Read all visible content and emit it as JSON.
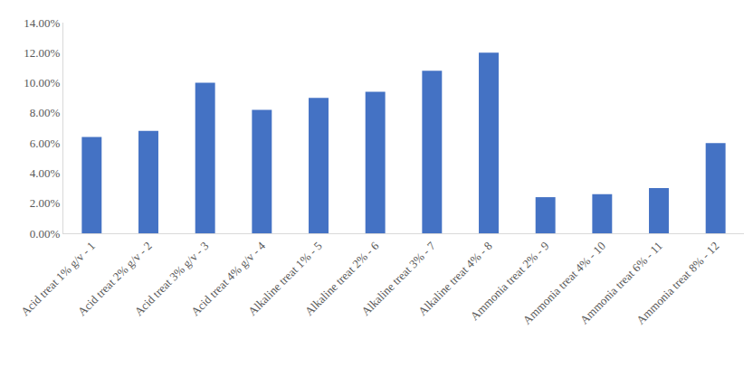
{
  "chart_data": {
    "type": "bar",
    "categories": [
      "Acid treat 1% g/v - 1",
      "Acid treat 2% g/v - 2",
      "Acid treat 3% g/v - 3",
      "Acid treat 4% g/v - 4",
      "Alkaline treat 1% - 5",
      "Alkaline treat 2% - 6",
      "Alkaline treat 3% - 7",
      "Alkaline treat 4% - 8",
      "Ammonia treat 2% - 9",
      "Ammonia treat 4% - 10",
      "Ammonia treat 6% - 11",
      "Ammonia treat 8% - 12"
    ],
    "values": [
      6.4,
      6.8,
      10.0,
      8.2,
      9.0,
      9.4,
      10.8,
      12.0,
      2.4,
      2.6,
      3.0,
      6.0
    ],
    "color": "#4472c4",
    "ylim": [
      0,
      14
    ],
    "yticks": [
      {
        "value": 0,
        "label": "0.00%"
      },
      {
        "value": 2,
        "label": "2.00%"
      },
      {
        "value": 4,
        "label": "4.00%"
      },
      {
        "value": 6,
        "label": "6.00%"
      },
      {
        "value": 8,
        "label": "8.00%"
      },
      {
        "value": 10,
        "label": "10.00%"
      },
      {
        "value": 12,
        "label": "12.00%"
      },
      {
        "value": 14,
        "label": "14.00%"
      }
    ],
    "grid": false
  }
}
